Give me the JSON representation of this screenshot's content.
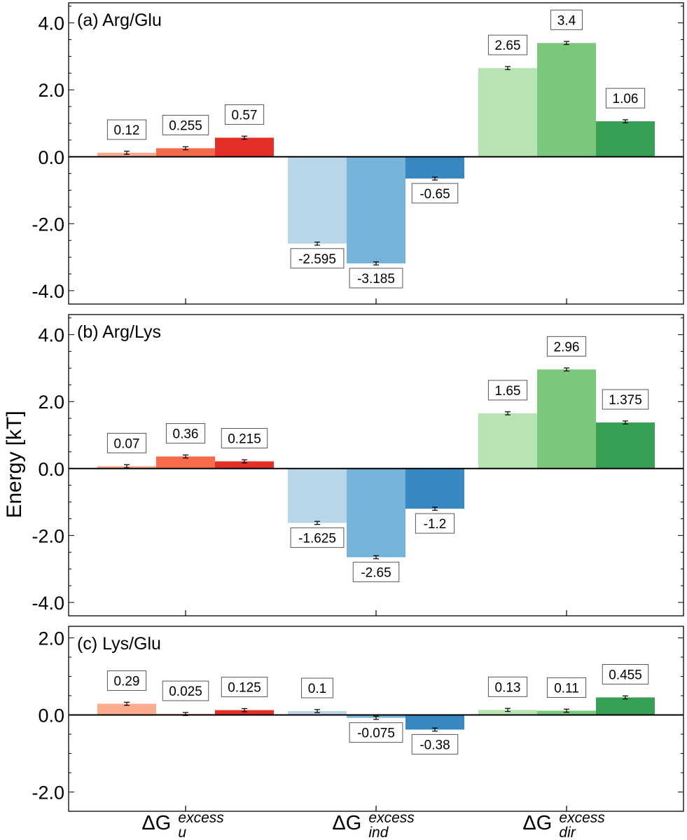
{
  "figure": {
    "ylabel": "Energy [kT]",
    "xlabels": [
      {
        "base": "ΔG",
        "sub": "u",
        "sup": "excess"
      },
      {
        "base": "ΔG",
        "sub": "ind",
        "sup": "excess"
      },
      {
        "base": "ΔG",
        "sub": "dir",
        "sup": "excess"
      }
    ]
  },
  "colors": {
    "reds": [
      "#fcab8f",
      "#f96a4a",
      "#e32f27"
    ],
    "blues": [
      "#b8d5ea",
      "#75b3d8",
      "#3787c0"
    ],
    "greens": [
      "#b8e3b2",
      "#7bc87c",
      "#37a055"
    ]
  },
  "chart_data": [
    {
      "type": "bar",
      "title": "(a) Arg/Glu",
      "ylabel": "Energy [kT]",
      "ylim": [
        -4.4,
        4.6
      ],
      "yticks": [
        "4.0",
        "2.0",
        "0.0",
        "-2.0",
        "-4.0"
      ],
      "categories": [
        "ΔG_u^excess",
        "ΔG_ind^excess",
        "ΔG_dir^excess"
      ],
      "series": [
        {
          "values": [
            0.12,
            0.255,
            0.57
          ],
          "labels": [
            "0.12",
            "0.255",
            "0.57"
          ]
        },
        {
          "values": [
            -2.595,
            -3.185,
            -0.65
          ],
          "labels": [
            "-2.595",
            "-3.185",
            "-0.65"
          ]
        },
        {
          "values": [
            2.65,
            3.4,
            1.06
          ],
          "labels": [
            "2.65",
            "3.4",
            "1.06"
          ]
        }
      ]
    },
    {
      "type": "bar",
      "title": "(b) Arg/Lys",
      "ylabel": "Energy [kT]",
      "ylim": [
        -4.4,
        4.6
      ],
      "yticks": [
        "4.0",
        "2.0",
        "0.0",
        "-2.0",
        "-4.0"
      ],
      "categories": [
        "ΔG_u^excess",
        "ΔG_ind^excess",
        "ΔG_dir^excess"
      ],
      "series": [
        {
          "values": [
            0.07,
            0.36,
            0.215
          ],
          "labels": [
            "0.07",
            "0.36",
            "0.215"
          ]
        },
        {
          "values": [
            -1.625,
            -2.65,
            -1.2
          ],
          "labels": [
            "-1.625",
            "-2.65",
            "-1.2"
          ]
        },
        {
          "values": [
            1.65,
            2.96,
            1.375
          ],
          "labels": [
            "1.65",
            "2.96",
            "1.375"
          ]
        }
      ]
    },
    {
      "type": "bar",
      "title": "(c) Lys/Glu",
      "ylabel": "Energy [kT]",
      "ylim": [
        -2.5,
        2.3
      ],
      "yticks": [
        "2.0",
        "0.0",
        "-2.0"
      ],
      "categories": [
        "ΔG_u^excess",
        "ΔG_ind^excess",
        "ΔG_dir^excess"
      ],
      "series": [
        {
          "values": [
            0.29,
            0.025,
            0.125
          ],
          "labels": [
            "0.29",
            "0.025",
            "0.125"
          ]
        },
        {
          "values": [
            0.1,
            -0.075,
            -0.38
          ],
          "labels": [
            "0.1",
            "-0.075",
            "-0.38"
          ]
        },
        {
          "values": [
            0.13,
            0.11,
            0.455
          ],
          "labels": [
            "0.13",
            "0.11",
            "0.455"
          ]
        }
      ]
    }
  ]
}
